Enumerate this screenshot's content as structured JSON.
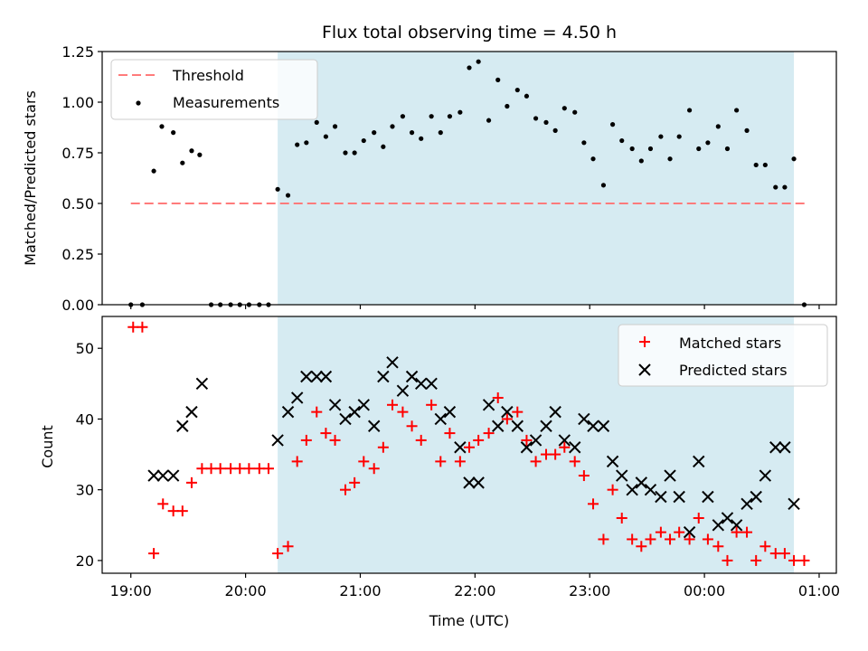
{
  "chart_data": [
    {
      "type": "scatter",
      "title": "Flux total observing time = 4.50 h",
      "xlabel": "",
      "ylabel": "Matched/Predicted stars",
      "ylim": [
        0,
        1.25
      ],
      "yticks": [
        "0.00",
        "0.25",
        "0.50",
        "0.75",
        "1.00",
        "1.25"
      ],
      "xlim_hours": [
        18.75,
        25.15
      ],
      "grid": false,
      "legend_position": "top-left",
      "observing_window_hours": [
        20.28,
        24.78
      ],
      "threshold": {
        "name": "Threshold",
        "value": 0.5,
        "x_hours": [
          19.0,
          24.9
        ],
        "color": "#ff7b7b"
      },
      "series": [
        {
          "name": "Measurements",
          "color": "#000000",
          "x_hours": [
            19.0,
            19.1,
            19.2,
            19.27,
            19.37,
            19.45,
            19.53,
            19.6,
            19.7,
            19.78,
            19.87,
            19.95,
            20.03,
            20.12,
            20.2,
            20.28,
            20.37,
            20.45,
            20.53,
            20.62,
            20.7,
            20.78,
            20.87,
            20.95,
            21.03,
            21.12,
            21.2,
            21.28,
            21.37,
            21.45,
            21.53,
            21.62,
            21.7,
            21.78,
            21.87,
            21.95,
            22.03,
            22.12,
            22.2,
            22.28,
            22.37,
            22.45,
            22.53,
            22.62,
            22.7,
            22.78,
            22.87,
            22.95,
            23.03,
            23.12,
            23.2,
            23.28,
            23.37,
            23.45,
            23.53,
            23.62,
            23.7,
            23.78,
            23.87,
            23.95,
            24.03,
            24.12,
            24.2,
            24.28,
            24.37,
            24.45,
            24.53,
            24.62,
            24.7,
            24.78,
            24.87
          ],
          "y": [
            0.0,
            0.0,
            0.66,
            0.88,
            0.85,
            0.7,
            0.76,
            0.74,
            0.0,
            0.0,
            0.0,
            0.0,
            0.0,
            0.0,
            0.0,
            0.57,
            0.54,
            0.79,
            0.8,
            0.9,
            0.83,
            0.88,
            0.75,
            0.75,
            0.81,
            0.85,
            0.78,
            0.88,
            0.93,
            0.85,
            0.82,
            0.93,
            0.85,
            0.93,
            0.95,
            1.17,
            1.2,
            0.91,
            1.11,
            0.98,
            1.06,
            1.03,
            0.92,
            0.9,
            0.86,
            0.97,
            0.95,
            0.8,
            0.72,
            0.59,
            0.89,
            0.81,
            0.77,
            0.71,
            0.77,
            0.83,
            0.72,
            0.83,
            0.96,
            0.77,
            0.8,
            0.88,
            0.77,
            0.96,
            0.86,
            0.69,
            0.69,
            0.58,
            0.58,
            0.72,
            0.0
          ]
        }
      ]
    },
    {
      "type": "scatter",
      "title": "",
      "xlabel": "Time (UTC)",
      "ylabel": "Count",
      "ylim": [
        18.2,
        54.5
      ],
      "yticks": [
        "20",
        "30",
        "40",
        "50"
      ],
      "xticks": [
        "19:00",
        "20:00",
        "21:00",
        "22:00",
        "23:00",
        "00:00",
        "01:00"
      ],
      "xtick_hours": [
        19,
        20,
        21,
        22,
        23,
        24,
        25
      ],
      "xlim_hours": [
        18.75,
        25.15
      ],
      "grid": false,
      "legend_position": "top-right",
      "observing_window_hours": [
        20.28,
        24.78
      ],
      "series": [
        {
          "name": "Matched stars",
          "marker": "plus",
          "color": "#ff0000",
          "x_hours": [
            19.02,
            19.1,
            19.2,
            19.28,
            19.37,
            19.45,
            19.53,
            19.62,
            19.7,
            19.78,
            19.87,
            19.95,
            20.03,
            20.12,
            20.2,
            20.28,
            20.37,
            20.45,
            20.53,
            20.62,
            20.7,
            20.78,
            20.87,
            20.95,
            21.03,
            21.12,
            21.2,
            21.28,
            21.37,
            21.45,
            21.53,
            21.62,
            21.7,
            21.78,
            21.87,
            21.95,
            22.03,
            22.12,
            22.2,
            22.28,
            22.37,
            22.45,
            22.53,
            22.62,
            22.7,
            22.78,
            22.87,
            22.95,
            23.03,
            23.12,
            23.2,
            23.28,
            23.37,
            23.45,
            23.53,
            23.62,
            23.7,
            23.78,
            23.87,
            23.95,
            24.03,
            24.12,
            24.2,
            24.28,
            24.37,
            24.45,
            24.53,
            24.62,
            24.7,
            24.78,
            24.87
          ],
          "y": [
            53,
            53,
            21,
            28,
            27,
            27,
            31,
            33,
            33,
            33,
            33,
            33,
            33,
            33,
            33,
            21,
            22,
            34,
            37,
            41,
            38,
            37,
            30,
            31,
            34,
            33,
            36,
            42,
            41,
            39,
            37,
            42,
            34,
            38,
            34,
            36,
            37,
            38,
            43,
            40,
            41,
            37,
            34,
            35,
            35,
            36,
            34,
            32,
            28,
            23,
            30,
            26,
            23,
            22,
            23,
            24,
            23,
            24,
            23,
            26,
            23,
            22,
            20,
            24,
            24,
            20,
            22,
            21,
            21,
            20,
            20
          ]
        },
        {
          "name": "Predicted stars",
          "marker": "x",
          "color": "#000000",
          "x_hours": [
            19.2,
            19.28,
            19.37,
            19.45,
            19.53,
            19.62,
            20.28,
            20.37,
            20.45,
            20.53,
            20.62,
            20.7,
            20.78,
            20.87,
            20.95,
            21.03,
            21.12,
            21.2,
            21.28,
            21.37,
            21.45,
            21.53,
            21.62,
            21.7,
            21.78,
            21.87,
            21.95,
            22.03,
            22.12,
            22.2,
            22.28,
            22.37,
            22.45,
            22.53,
            22.62,
            22.7,
            22.78,
            22.87,
            22.95,
            23.03,
            23.12,
            23.2,
            23.28,
            23.37,
            23.45,
            23.53,
            23.62,
            23.7,
            23.78,
            23.87,
            23.95,
            24.03,
            24.12,
            24.2,
            24.28,
            24.37,
            24.45,
            24.53,
            24.62,
            24.7,
            24.78
          ],
          "y": [
            32,
            32,
            32,
            39,
            41,
            45,
            37,
            41,
            43,
            46,
            46,
            46,
            42,
            40,
            41,
            42,
            39,
            46,
            48,
            44,
            46,
            45,
            45,
            40,
            41,
            36,
            31,
            31,
            42,
            39,
            41,
            39,
            36,
            37,
            39,
            41,
            37,
            36,
            40,
            39,
            39,
            34,
            32,
            30,
            31,
            30,
            29,
            32,
            29,
            24,
            34,
            29,
            25,
            26,
            25,
            28,
            29,
            32,
            36,
            36,
            28
          ]
        }
      ]
    }
  ]
}
